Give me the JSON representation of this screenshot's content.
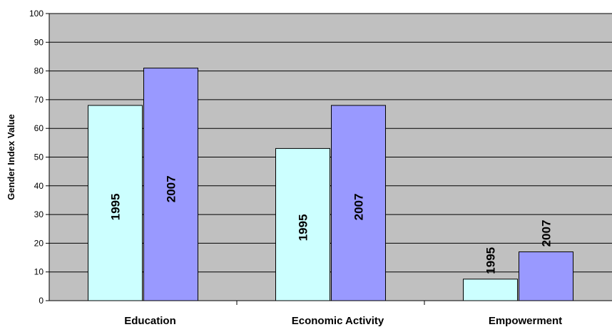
{
  "chart_data": {
    "type": "bar",
    "title": "",
    "xlabel": "",
    "ylabel": "Gender Index Value",
    "ylim": [
      0,
      100
    ],
    "yticks": [
      0,
      10,
      20,
      30,
      40,
      50,
      60,
      70,
      80,
      90,
      100
    ],
    "categories": [
      "Education",
      "Economic Activity",
      "Empowerment"
    ],
    "series": [
      {
        "name": "1995",
        "values": [
          68,
          53,
          7.5
        ],
        "color": "#ccffff"
      },
      {
        "name": "2007",
        "values": [
          81,
          68,
          17
        ],
        "color": "#9999ff"
      }
    ],
    "bar_labels": "1995",
    "bar_labels_2": "2007",
    "plot_background": "#c0c0c0",
    "grid": true,
    "legend": "none"
  }
}
